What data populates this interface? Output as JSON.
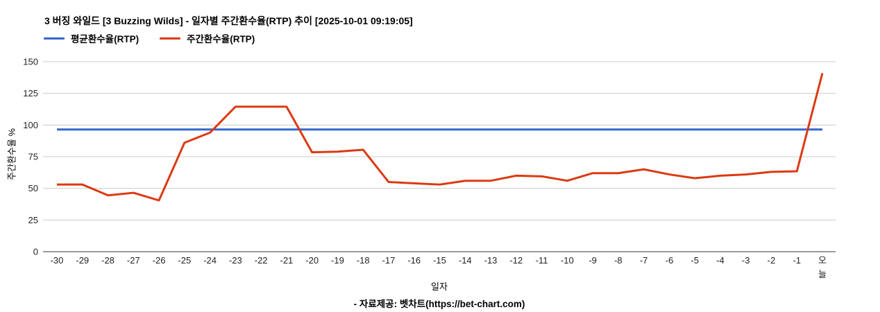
{
  "chart_data": {
    "type": "line",
    "title": "3 버징 와일드 [3 Buzzing Wilds] - 일자별 주간환수율(RTP) 추이 [2025-10-01 09:19:05]",
    "xlabel": "일자",
    "ylabel": "주간환수율 %",
    "ylim": [
      0,
      150
    ],
    "yticks": [
      0,
      25,
      50,
      75,
      100,
      125,
      150
    ],
    "grid": true,
    "legend_position": "top-left",
    "colors": {
      "grid": "#cccccc",
      "axis": "#333333",
      "tick_text": "#222222"
    },
    "categories": [
      "-30",
      "-29",
      "-28",
      "-27",
      "-26",
      "-25",
      "-24",
      "-23",
      "-22",
      "-21",
      "-20",
      "-19",
      "-18",
      "-17",
      "-16",
      "-15",
      "-14",
      "-13",
      "-12",
      "-11",
      "-10",
      "-9",
      "-8",
      "-7",
      "-6",
      "-5",
      "-4",
      "-3",
      "-2",
      "-1",
      "오늘"
    ],
    "series": [
      {
        "name": "평균환수율(RTP)",
        "color": "#3366cc",
        "values": [
          96.5,
          96.5,
          96.5,
          96.5,
          96.5,
          96.5,
          96.5,
          96.5,
          96.5,
          96.5,
          96.5,
          96.5,
          96.5,
          96.5,
          96.5,
          96.5,
          96.5,
          96.5,
          96.5,
          96.5,
          96.5,
          96.5,
          96.5,
          96.5,
          96.5,
          96.5,
          96.5,
          96.5,
          96.5,
          96.5,
          96.5
        ]
      },
      {
        "name": "주간환수율(RTP)",
        "color": "#dc3912",
        "values": [
          53,
          53,
          44.5,
          46.5,
          40.5,
          86,
          94,
          114.5,
          114.5,
          114.5,
          78.5,
          79,
          80.5,
          55,
          54,
          53,
          56,
          56,
          60,
          59.5,
          56,
          62,
          62,
          65,
          61,
          58,
          60,
          61,
          63,
          63.5,
          141
        ]
      }
    ]
  },
  "footer": {
    "credit": "- 자료제공: 벳차트(https://bet-chart.com)"
  }
}
